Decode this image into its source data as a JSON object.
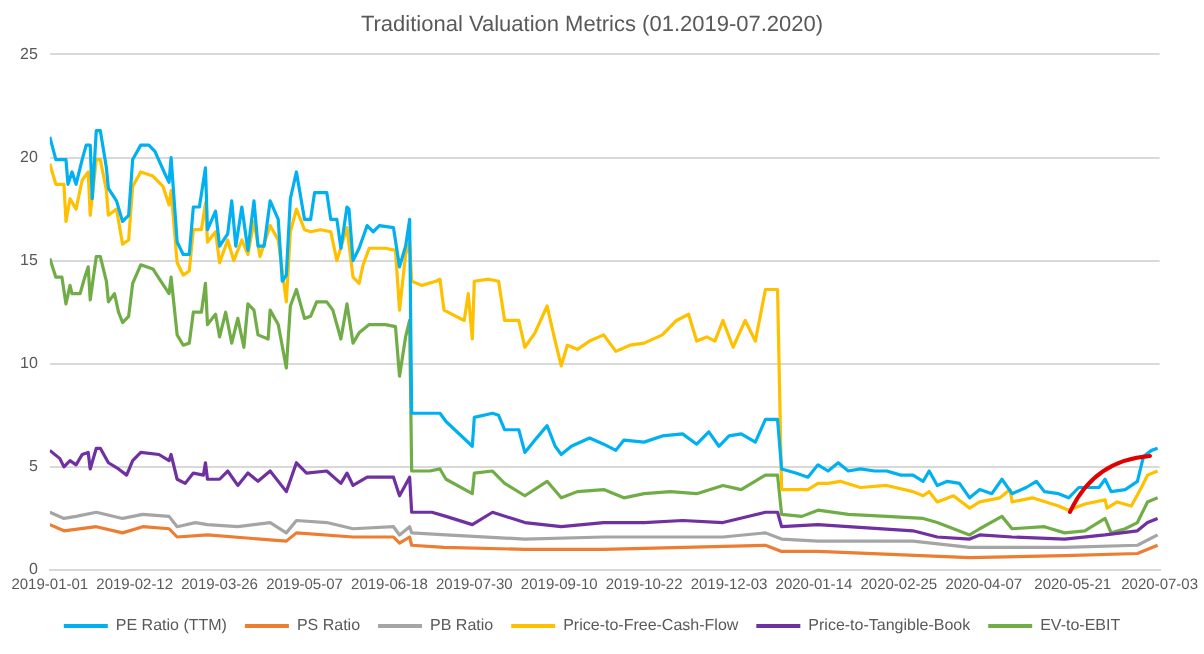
{
  "chart_data": {
    "type": "line",
    "title": "Traditional Valuation Metrics (01.2019-07.2020)",
    "xlim": [
      "2019-01-01",
      "2020-07-03"
    ],
    "xticks": [
      "2019-01-01",
      "2019-02-12",
      "2019-03-26",
      "2019-05-07",
      "2019-06-18",
      "2019-07-30",
      "2019-09-10",
      "2019-10-22",
      "2019-12-03",
      "2020-01-14",
      "2020-02-25",
      "2020-04-07",
      "2020-05-21",
      "2020-07-03"
    ],
    "ylim": [
      0,
      25
    ],
    "yticks": [
      0,
      5,
      10,
      15,
      20,
      25
    ],
    "grid": "y",
    "legend": "bottom",
    "marker": "none",
    "line_style": "solid",
    "series": [
      {
        "name": "PE Ratio (TTM)",
        "color": "#00b0f0",
        "x": [
          "2019-01-01",
          "2019-01-04",
          "2019-01-09",
          "2019-01-10",
          "2019-01-12",
          "2019-01-14",
          "2019-01-17",
          "2019-01-19",
          "2019-01-21",
          "2019-01-22",
          "2019-01-24",
          "2019-01-26",
          "2019-01-29",
          "2019-01-30",
          "2019-02-03",
          "2019-02-06",
          "2019-02-09",
          "2019-02-11",
          "2019-02-15",
          "2019-02-19",
          "2019-02-22",
          "2019-02-27",
          "2019-03-01",
          "2019-03-02",
          "2019-03-05",
          "2019-03-08",
          "2019-03-11",
          "2019-03-13",
          "2019-03-16",
          "2019-03-19",
          "2019-03-20",
          "2019-03-24",
          "2019-03-26",
          "2019-03-30",
          "2019-04-01",
          "2019-04-03",
          "2019-04-06",
          "2019-04-09",
          "2019-04-12",
          "2019-04-14",
          "2019-04-17",
          "2019-04-20",
          "2019-04-24",
          "2019-04-26",
          "2019-04-28",
          "2019-04-30",
          "2019-05-03",
          "2019-05-07",
          "2019-05-10",
          "2019-05-12",
          "2019-05-18",
          "2019-05-20",
          "2019-05-23",
          "2019-05-25",
          "2019-05-28",
          "2019-05-29",
          "2019-05-31",
          "2019-06-03",
          "2019-06-07",
          "2019-06-10",
          "2019-06-13",
          "2019-06-20",
          "2019-06-23",
          "2019-06-26",
          "2019-06-28",
          "2019-06-29",
          "2019-07-08",
          "2019-07-13",
          "2019-07-16",
          "2019-07-29",
          "2019-07-30",
          "2019-08-08",
          "2019-08-11",
          "2019-08-14",
          "2019-08-21",
          "2019-08-24",
          "2019-08-29",
          "2019-09-04",
          "2019-09-08",
          "2019-09-11",
          "2019-09-16",
          "2019-09-25",
          "2019-10-02",
          "2019-10-08",
          "2019-10-12",
          "2019-10-22",
          "2019-10-31",
          "2019-11-10",
          "2019-11-17",
          "2019-11-23",
          "2019-11-28",
          "2019-12-03",
          "2019-12-09",
          "2019-12-16",
          "2019-12-21",
          "2019-12-27",
          "2019-12-29",
          "2020-01-05",
          "2020-01-11",
          "2020-01-16",
          "2020-01-21",
          "2020-01-26",
          "2020-01-31",
          "2020-02-06",
          "2020-02-13",
          "2020-02-19",
          "2020-02-26",
          "2020-03-03",
          "2020-03-08",
          "2020-03-11",
          "2020-03-15",
          "2020-03-20",
          "2020-03-26",
          "2020-03-31",
          "2020-04-05",
          "2020-04-11",
          "2020-04-16",
          "2020-04-21",
          "2020-04-28",
          "2020-05-03",
          "2020-05-07",
          "2020-05-14",
          "2020-05-19",
          "2020-05-24",
          "2020-06-03",
          "2020-06-06",
          "2020-06-09",
          "2020-06-16",
          "2020-06-22",
          "2020-06-25",
          "2020-06-29",
          "2020-07-02"
        ],
        "values": [
          21.0,
          19.9,
          19.9,
          18.7,
          19.3,
          18.7,
          19.9,
          20.6,
          20.6,
          18.0,
          21.3,
          21.3,
          19.5,
          18.5,
          17.9,
          16.9,
          17.2,
          19.9,
          20.6,
          20.6,
          20.3,
          19.2,
          18.8,
          20.0,
          15.9,
          15.3,
          15.3,
          17.6,
          17.6,
          19.5,
          16.5,
          17.4,
          15.7,
          16.3,
          17.9,
          15.7,
          17.6,
          15.5,
          17.9,
          15.7,
          15.7,
          17.9,
          17.0,
          14.0,
          14.3,
          18.0,
          19.3,
          17.0,
          17.0,
          18.3,
          18.3,
          17.0,
          17.0,
          15.6,
          17.6,
          17.5,
          15.0,
          15.6,
          16.7,
          16.4,
          16.7,
          16.6,
          14.7,
          15.7,
          17.0,
          7.6,
          7.6,
          7.6,
          7.2,
          6.0,
          7.4,
          7.6,
          7.5,
          6.8,
          6.8,
          5.7,
          6.3,
          7.0,
          6.0,
          5.6,
          6.0,
          6.4,
          6.1,
          5.8,
          6.3,
          6.2,
          6.5,
          6.6,
          6.1,
          6.7,
          6.0,
          6.5,
          6.6,
          6.2,
          7.3,
          7.3,
          4.9,
          4.7,
          4.5,
          5.1,
          4.8,
          5.2,
          4.8,
          4.9,
          4.8,
          4.8,
          4.6,
          4.6,
          4.3,
          4.8,
          4.1,
          4.3,
          4.2,
          3.5,
          3.9,
          3.7,
          4.4,
          3.7,
          4.0,
          4.3,
          3.8,
          3.7,
          3.5,
          4.0,
          4.0,
          4.4,
          3.8,
          3.9,
          4.3,
          5.5,
          5.8,
          5.9
        ]
      },
      {
        "name": "PS Ratio",
        "color": "#ed7d31",
        "x": [
          "2019-01-01",
          "2019-01-08",
          "2019-01-24",
          "2019-02-06",
          "2019-02-16",
          "2019-03-01",
          "2019-03-05",
          "2019-03-20",
          "2019-04-28",
          "2019-05-03",
          "2019-05-31",
          "2019-06-20",
          "2019-06-23",
          "2019-06-28",
          "2019-06-29",
          "2019-07-15",
          "2019-08-24",
          "2019-10-02",
          "2019-12-21",
          "2019-12-29",
          "2020-01-16",
          "2020-03-31",
          "2020-05-17",
          "2020-06-22",
          "2020-07-02"
        ],
        "values": [
          2.2,
          1.9,
          2.1,
          1.8,
          2.1,
          2.0,
          1.6,
          1.7,
          1.4,
          1.8,
          1.6,
          1.6,
          1.3,
          1.6,
          1.2,
          1.1,
          1.0,
          1.0,
          1.2,
          0.9,
          0.9,
          0.6,
          0.7,
          0.8,
          1.2
        ]
      },
      {
        "name": "PB Ratio",
        "color": "#a5a5a5",
        "x": [
          "2019-01-01",
          "2019-01-08",
          "2019-01-14",
          "2019-01-24",
          "2019-02-06",
          "2019-02-16",
          "2019-03-01",
          "2019-03-05",
          "2019-03-14",
          "2019-03-20",
          "2019-04-04",
          "2019-04-20",
          "2019-04-28",
          "2019-05-03",
          "2019-05-18",
          "2019-05-31",
          "2019-06-20",
          "2019-06-23",
          "2019-06-28",
          "2019-06-29",
          "2019-07-16",
          "2019-08-24",
          "2019-10-02",
          "2019-11-30",
          "2019-12-21",
          "2019-12-29",
          "2020-01-16",
          "2020-03-03",
          "2020-03-31",
          "2020-05-17",
          "2020-06-22",
          "2020-07-02"
        ],
        "values": [
          2.8,
          2.5,
          2.6,
          2.8,
          2.5,
          2.7,
          2.6,
          2.1,
          2.3,
          2.2,
          2.1,
          2.3,
          1.8,
          2.4,
          2.3,
          2.0,
          2.1,
          1.7,
          2.1,
          1.8,
          1.7,
          1.5,
          1.6,
          1.6,
          1.8,
          1.5,
          1.4,
          1.4,
          1.1,
          1.1,
          1.2,
          1.7
        ]
      },
      {
        "name": "Price-to-Free-Cash-Flow",
        "color": "#ffc000",
        "x": [
          "2019-01-01",
          "2019-01-04",
          "2019-01-08",
          "2019-01-09",
          "2019-01-11",
          "2019-01-14",
          "2019-01-17",
          "2019-01-20",
          "2019-01-21",
          "2019-01-24",
          "2019-01-26",
          "2019-01-29",
          "2019-01-30",
          "2019-02-03",
          "2019-02-06",
          "2019-02-09",
          "2019-02-11",
          "2019-02-15",
          "2019-02-21",
          "2019-02-26",
          "2019-03-01",
          "2019-03-02",
          "2019-03-05",
          "2019-03-08",
          "2019-03-11",
          "2019-03-13",
          "2019-03-17",
          "2019-03-19",
          "2019-03-20",
          "2019-03-24",
          "2019-03-26",
          "2019-03-30",
          "2019-04-02",
          "2019-04-06",
          "2019-04-09",
          "2019-04-12",
          "2019-04-15",
          "2019-04-20",
          "2019-04-24",
          "2019-04-28",
          "2019-04-30",
          "2019-05-03",
          "2019-05-07",
          "2019-05-10",
          "2019-05-15",
          "2019-05-20",
          "2019-05-23",
          "2019-05-28",
          "2019-05-31",
          "2019-06-03",
          "2019-06-05",
          "2019-06-08",
          "2019-06-16",
          "2019-06-21",
          "2019-06-23",
          "2019-06-26",
          "2019-06-28",
          "2019-06-29",
          "2019-07-04",
          "2019-07-11",
          "2019-07-13",
          "2019-07-15",
          "2019-07-25",
          "2019-07-27",
          "2019-07-29",
          "2019-07-30",
          "2019-08-06",
          "2019-08-11",
          "2019-08-14",
          "2019-08-21",
          "2019-08-24",
          "2019-08-29",
          "2019-09-04",
          "2019-09-08",
          "2019-09-11",
          "2019-09-14",
          "2019-09-19",
          "2019-09-25",
          "2019-10-02",
          "2019-10-08",
          "2019-10-15",
          "2019-10-22",
          "2019-10-31",
          "2019-11-07",
          "2019-11-13",
          "2019-11-17",
          "2019-11-22",
          "2019-11-26",
          "2019-11-30",
          "2019-12-05",
          "2019-12-11",
          "2019-12-16",
          "2019-12-21",
          "2019-12-27",
          "2019-12-29",
          "2020-01-05",
          "2020-01-11",
          "2020-01-16",
          "2020-01-21",
          "2020-01-27",
          "2020-02-06",
          "2020-02-19",
          "2020-03-03",
          "2020-03-08",
          "2020-03-11",
          "2020-03-15",
          "2020-03-23",
          "2020-03-31",
          "2020-04-05",
          "2020-04-15",
          "2020-04-20",
          "2020-04-21",
          "2020-05-01",
          "2020-05-14",
          "2020-05-19",
          "2020-05-27",
          "2020-06-06",
          "2020-06-07",
          "2020-06-12",
          "2020-06-19",
          "2020-06-24",
          "2020-06-27",
          "2020-07-02"
        ],
        "values": [
          19.7,
          18.7,
          18.7,
          16.9,
          18.0,
          17.5,
          18.9,
          19.3,
          17.2,
          19.9,
          19.9,
          18.4,
          17.2,
          17.5,
          15.8,
          16.0,
          18.6,
          19.3,
          19.1,
          18.6,
          17.7,
          18.4,
          14.9,
          14.3,
          14.5,
          16.5,
          16.5,
          17.8,
          15.9,
          16.4,
          14.9,
          16.0,
          15.0,
          16.0,
          15.3,
          16.9,
          15.2,
          16.7,
          16.0,
          13.0,
          16.4,
          17.5,
          16.5,
          16.4,
          16.5,
          16.4,
          15.0,
          16.6,
          14.2,
          13.9,
          14.8,
          15.6,
          15.6,
          15.5,
          12.6,
          15.3,
          15.9,
          14.0,
          13.8,
          14.0,
          14.1,
          12.6,
          12.1,
          13.4,
          11.2,
          14.0,
          14.1,
          14.0,
          12.1,
          12.1,
          10.8,
          11.5,
          12.8,
          11.1,
          9.9,
          10.9,
          10.7,
          11.1,
          11.4,
          10.6,
          10.9,
          11.0,
          11.4,
          12.1,
          12.4,
          11.1,
          11.3,
          11.1,
          12.1,
          10.8,
          12.1,
          11.1,
          13.6,
          13.6,
          3.9,
          3.9,
          3.9,
          4.2,
          4.2,
          4.3,
          4.0,
          4.1,
          3.8,
          3.6,
          3.8,
          3.3,
          3.6,
          3.0,
          3.3,
          3.5,
          3.9,
          3.3,
          3.5,
          3.1,
          2.9,
          3.2,
          3.4,
          3.0,
          3.3,
          3.1,
          4.0,
          4.6,
          4.8
        ]
      },
      {
        "name": "Price-to-Tangible-Book",
        "color": "#7030a0",
        "x": [
          "2019-01-01",
          "2019-01-06",
          "2019-01-08",
          "2019-01-11",
          "2019-01-14",
          "2019-01-17",
          "2019-01-20",
          "2019-01-21",
          "2019-01-24",
          "2019-01-26",
          "2019-01-30",
          "2019-02-04",
          "2019-02-08",
          "2019-02-11",
          "2019-02-15",
          "2019-02-24",
          "2019-03-01",
          "2019-03-02",
          "2019-03-05",
          "2019-03-09",
          "2019-03-13",
          "2019-03-18",
          "2019-03-19",
          "2019-03-20",
          "2019-03-26",
          "2019-03-30",
          "2019-04-04",
          "2019-04-09",
          "2019-04-14",
          "2019-04-20",
          "2019-04-28",
          "2019-05-03",
          "2019-05-08",
          "2019-05-18",
          "2019-05-25",
          "2019-05-28",
          "2019-05-31",
          "2019-06-07",
          "2019-06-20",
          "2019-06-23",
          "2019-06-28",
          "2019-06-29",
          "2019-07-09",
          "2019-07-16",
          "2019-07-29",
          "2019-08-08",
          "2019-08-24",
          "2019-09-11",
          "2019-10-02",
          "2019-10-22",
          "2019-11-10",
          "2019-11-30",
          "2019-12-21",
          "2019-12-27",
          "2019-12-29",
          "2020-01-16",
          "2020-01-31",
          "2020-03-03",
          "2020-03-15",
          "2020-03-31",
          "2020-04-05",
          "2020-04-21",
          "2020-05-17",
          "2020-06-06",
          "2020-06-22",
          "2020-06-27",
          "2020-07-02"
        ],
        "values": [
          5.8,
          5.4,
          5.0,
          5.3,
          5.1,
          5.6,
          5.7,
          4.9,
          5.9,
          5.9,
          5.2,
          4.9,
          4.6,
          5.3,
          5.7,
          5.6,
          5.3,
          5.6,
          4.4,
          4.2,
          4.7,
          4.6,
          5.2,
          4.4,
          4.4,
          4.8,
          4.1,
          4.7,
          4.3,
          4.8,
          3.8,
          5.2,
          4.7,
          4.8,
          4.2,
          4.7,
          4.1,
          4.5,
          4.5,
          3.6,
          4.5,
          2.8,
          2.8,
          2.6,
          2.2,
          2.8,
          2.3,
          2.1,
          2.3,
          2.3,
          2.4,
          2.3,
          2.8,
          2.8,
          2.1,
          2.2,
          2.1,
          1.9,
          1.6,
          1.5,
          1.7,
          1.6,
          1.5,
          1.7,
          1.9,
          2.3,
          2.5
        ]
      },
      {
        "name": "EV-to-EBIT",
        "color": "#70ad47",
        "x": [
          "2019-01-01",
          "2019-01-04",
          "2019-01-07",
          "2019-01-09",
          "2019-01-11",
          "2019-01-12",
          "2019-01-16",
          "2019-01-18",
          "2019-01-20",
          "2019-01-21",
          "2019-01-24",
          "2019-01-26",
          "2019-01-29",
          "2019-01-30",
          "2019-02-02",
          "2019-02-04",
          "2019-02-06",
          "2019-02-09",
          "2019-02-11",
          "2019-02-15",
          "2019-02-21",
          "2019-02-25",
          "2019-03-01",
          "2019-03-02",
          "2019-03-05",
          "2019-03-08",
          "2019-03-11",
          "2019-03-13",
          "2019-03-17",
          "2019-03-19",
          "2019-03-20",
          "2019-03-24",
          "2019-03-26",
          "2019-03-29",
          "2019-04-01",
          "2019-04-04",
          "2019-04-07",
          "2019-04-09",
          "2019-04-12",
          "2019-04-14",
          "2019-04-19",
          "2019-04-20",
          "2019-04-24",
          "2019-04-28",
          "2019-04-30",
          "2019-05-03",
          "2019-05-07",
          "2019-05-10",
          "2019-05-13",
          "2019-05-18",
          "2019-05-21",
          "2019-05-25",
          "2019-05-28",
          "2019-05-31",
          "2019-06-03",
          "2019-06-08",
          "2019-06-16",
          "2019-06-21",
          "2019-06-23",
          "2019-06-26",
          "2019-06-28",
          "2019-06-29",
          "2019-07-08",
          "2019-07-13",
          "2019-07-16",
          "2019-07-29",
          "2019-07-30",
          "2019-08-08",
          "2019-08-14",
          "2019-08-24",
          "2019-09-04",
          "2019-09-11",
          "2019-09-19",
          "2019-10-02",
          "2019-10-12",
          "2019-10-22",
          "2019-11-04",
          "2019-11-17",
          "2019-11-30",
          "2019-12-09",
          "2019-12-21",
          "2019-12-27",
          "2019-12-29",
          "2020-01-08",
          "2020-01-16",
          "2020-01-31",
          "2020-02-19",
          "2020-03-08",
          "2020-03-15",
          "2020-03-31",
          "2020-04-05",
          "2020-04-16",
          "2020-04-21",
          "2020-05-07",
          "2020-05-17",
          "2020-05-27",
          "2020-06-06",
          "2020-06-09",
          "2020-06-16",
          "2020-06-22",
          "2020-06-27",
          "2020-07-02"
        ],
        "values": [
          15.1,
          14.2,
          14.2,
          12.9,
          13.8,
          13.4,
          13.4,
          14.1,
          14.7,
          13.1,
          15.2,
          15.2,
          14.0,
          13.0,
          13.4,
          12.5,
          12.0,
          12.3,
          13.9,
          14.8,
          14.6,
          14.0,
          13.4,
          14.2,
          11.4,
          10.9,
          11.0,
          12.5,
          12.5,
          13.9,
          11.9,
          12.4,
          11.3,
          12.5,
          11.0,
          12.2,
          10.8,
          12.9,
          12.6,
          11.4,
          11.2,
          12.6,
          11.9,
          9.8,
          12.8,
          13.6,
          12.2,
          12.3,
          13.0,
          13.0,
          12.6,
          11.2,
          12.9,
          11.0,
          11.5,
          11.9,
          11.9,
          11.8,
          9.4,
          11.3,
          12.1,
          4.8,
          4.8,
          4.9,
          4.4,
          3.7,
          4.7,
          4.8,
          4.2,
          3.6,
          4.3,
          3.5,
          3.8,
          3.9,
          3.5,
          3.7,
          3.8,
          3.7,
          4.1,
          3.9,
          4.6,
          4.6,
          2.7,
          2.6,
          2.9,
          2.7,
          2.6,
          2.5,
          2.3,
          1.7,
          2.0,
          2.6,
          2.0,
          2.1,
          1.8,
          1.9,
          2.5,
          1.8,
          2.0,
          2.3,
          3.3,
          3.5
        ]
      }
    ]
  }
}
